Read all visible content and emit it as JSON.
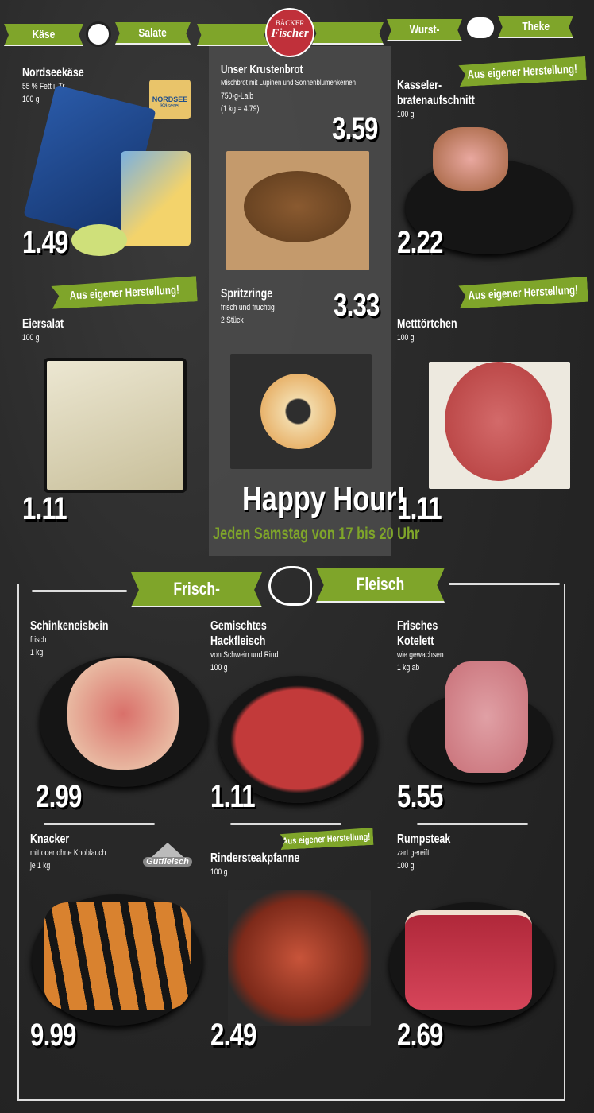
{
  "header": {
    "banners": [
      "Käse",
      "Salate",
      "",
      "",
      "Wurst-",
      "Theke"
    ],
    "logo": {
      "top": "BÄCKER",
      "main": "Fischer"
    }
  },
  "badge_text": "Aus eigener Herstellung!",
  "products": {
    "nordseekaese": {
      "title": "Nordseekäse",
      "lines": [
        "55 % Fett i. Tr.",
        "100 g"
      ],
      "price": "1.49",
      "brand": {
        "top": "NORDSEE",
        "bottom": "Käserei"
      }
    },
    "krustenbrot": {
      "title": "Unser Krustenbrot",
      "lines": [
        "Mischbrot mit Lupinen und Sonnenblumenkernen",
        "750-g-Laib",
        "(1 kg = 4.79)"
      ],
      "price": "3.59"
    },
    "kasseler": {
      "title": [
        "Kasseler-",
        "bratenaufschnitt"
      ],
      "lines": [
        "100 g"
      ],
      "price": "2.22"
    },
    "eiersalat": {
      "title": "Eiersalat",
      "lines": [
        "100 g"
      ],
      "price": "1.11"
    },
    "spritzringe": {
      "title": "Spritzringe",
      "lines": [
        "frisch und fruchtig",
        "2 Stück"
      ],
      "price": "3.33"
    },
    "metttoertchen": {
      "title": "Metttörtchen",
      "lines": [
        "100 g"
      ],
      "price": "1.11"
    },
    "schinkeneisbein": {
      "title": "Schinkeneisbein",
      "lines": [
        "frisch",
        "1 kg"
      ],
      "price": "2.99"
    },
    "hackfleisch": {
      "title": [
        "Gemischtes",
        "Hackfleisch"
      ],
      "lines": [
        "von Schwein und Rind",
        "100 g"
      ],
      "price": "1.11"
    },
    "kotelett": {
      "title": [
        "Frisches",
        "Kotelett"
      ],
      "lines": [
        "wie gewachsen",
        "1 kg ab"
      ],
      "price": "5.55"
    },
    "knacker": {
      "title": "Knacker",
      "lines": [
        "mit oder ohne Knoblauch",
        "je 1 kg"
      ],
      "price": "9.99",
      "brand": "Gutfleisch"
    },
    "rindersteakpfanne": {
      "title": "Rindersteakpfanne",
      "lines": [
        "100 g"
      ],
      "price": "2.49"
    },
    "rumpsteak": {
      "title": "Rumpsteak",
      "lines": [
        "zart gereift",
        "100 g"
      ],
      "price": "2.69"
    }
  },
  "happy_hour": {
    "title": "Happy Hour!",
    "subtitle": "Jeden Samstag von 17 bis 20 Uhr"
  },
  "section": {
    "left": "Frisch-",
    "right": "Fleisch"
  },
  "colors": {
    "green": "#7fa52a",
    "logo_red": "#c0303a",
    "panel": "#4a4a4a"
  }
}
